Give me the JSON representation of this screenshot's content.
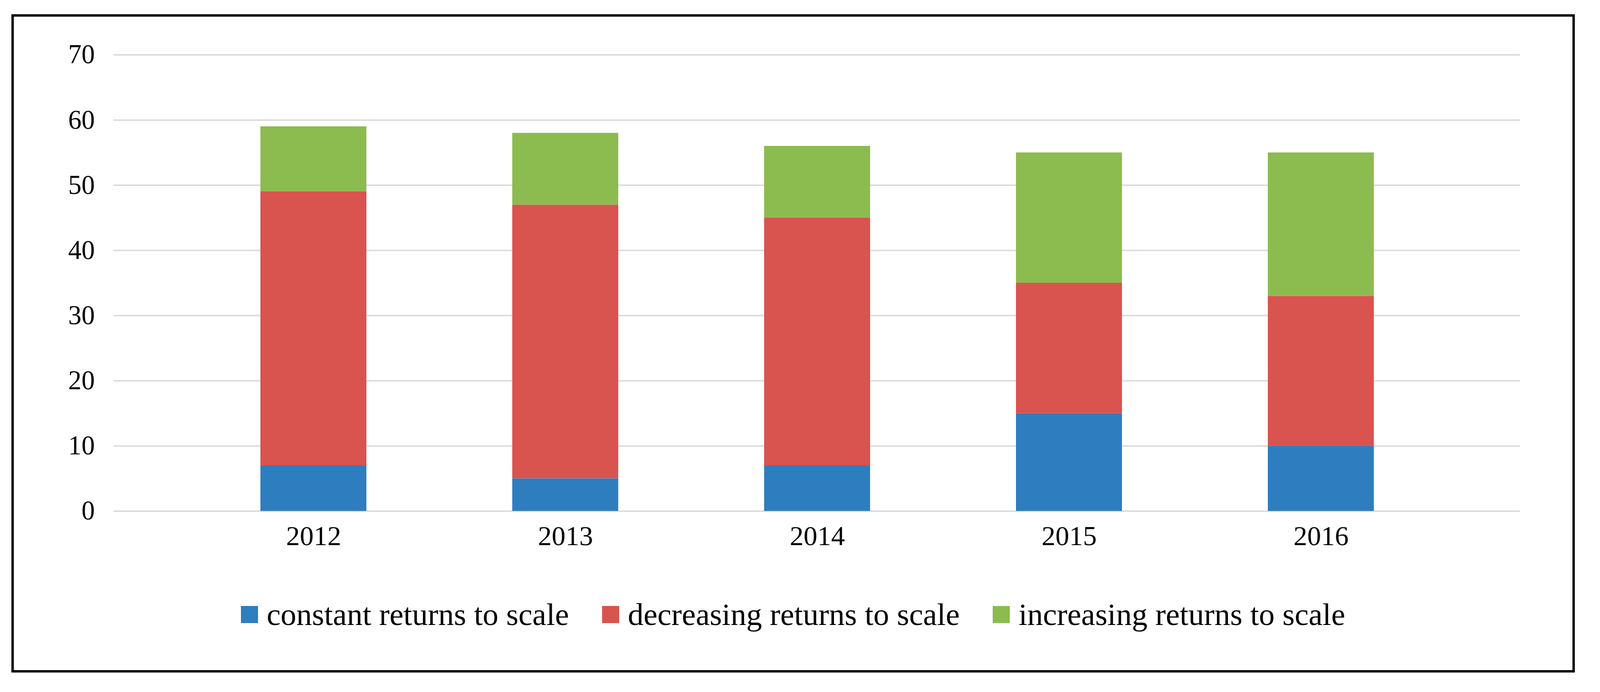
{
  "chart_data": {
    "type": "bar",
    "stacked": true,
    "grid": true,
    "legend": "bottom",
    "categories": [
      "2012",
      "2013",
      "2014",
      "2015",
      "2016"
    ],
    "series": [
      {
        "name": "constant returns to scale",
        "color": "#2e7ebf",
        "values": [
          7,
          5,
          7,
          15,
          10
        ]
      },
      {
        "name": "decreasing returns to scale",
        "color": "#d9534f",
        "values": [
          42,
          42,
          38,
          20,
          23
        ]
      },
      {
        "name": "increasing returns to scale",
        "color": "#8cbb4f",
        "values": [
          10,
          11,
          11,
          20,
          22
        ]
      }
    ],
    "ylim": [
      0,
      70
    ],
    "yticks": [
      0,
      10,
      20,
      30,
      40,
      50,
      60,
      70
    ]
  }
}
